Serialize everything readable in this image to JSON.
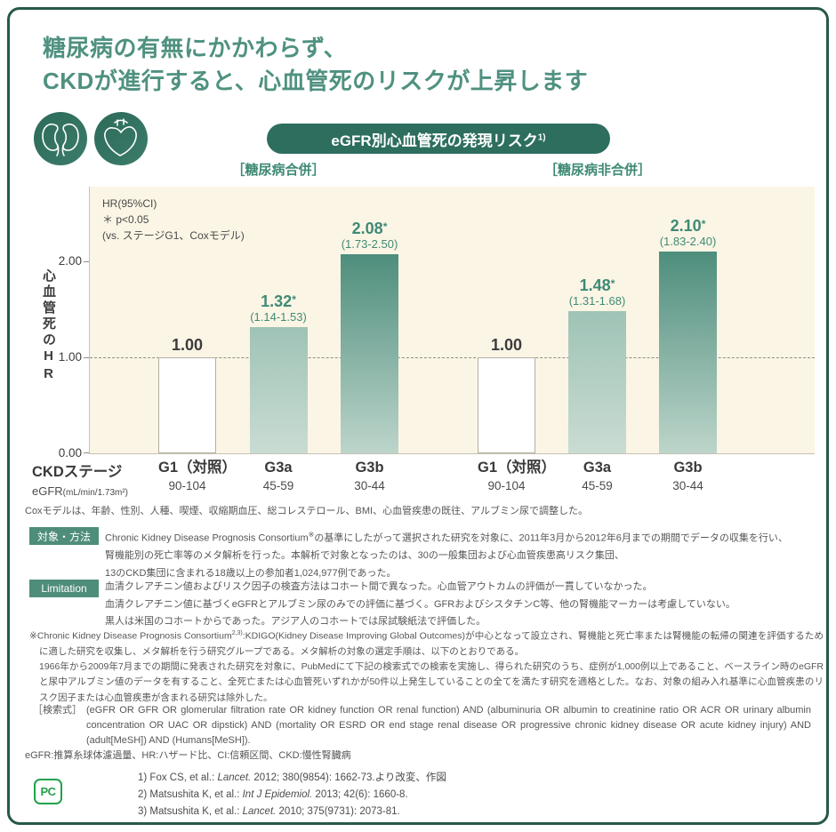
{
  "page": {
    "title_line1": "糖尿病の有無にかかわらず、",
    "title_line2": "CKDが進行すると、心血管死のリスクが上昇します",
    "frame_color": "#27594a",
    "title_color": "#4f9180"
  },
  "header": {
    "icons": [
      "kidneys-icon",
      "heart-icon"
    ],
    "badge": [
      {
        "t": "eGFR別心血管死の発現リスク"
      },
      {
        "t": "1)",
        "sup": true
      }
    ],
    "badge_bg": "#2d6e5f"
  },
  "chart_data": {
    "type": "bar",
    "title": "eGFR別心血管死の発現リスク1)",
    "notes": [
      "HR(95%CI)",
      "＊ p<0.05",
      "(vs. ステージG1、Coxモデル)"
    ],
    "ylabel": "心血管死のHR",
    "yticks": [
      "2.00",
      "1.00",
      "0.00"
    ],
    "ylim": [
      0,
      2.78
    ],
    "reference_line": 1.0,
    "grid": "dashed line at HR=1.00",
    "x_axis": {
      "stage_label": "CKDステージ",
      "egfr_label_main": "eGFR",
      "egfr_label_unit": "(mL/min/1.73m²)"
    },
    "significance_marker": "*",
    "groups": [
      {
        "label": "［糖尿病合併］",
        "bars": [
          {
            "stage": "G1（対照）",
            "egfr": "90-104",
            "value": 1.0,
            "value_label": "1.00",
            "significant": false,
            "ci_label": "",
            "style": "control"
          },
          {
            "stage": "G3a",
            "egfr": "45-59",
            "value": 1.32,
            "value_label": "1.32",
            "significant": true,
            "ci_label": "(1.14-1.53)",
            "style": "g3a"
          },
          {
            "stage": "G3b",
            "egfr": "30-44",
            "value": 2.08,
            "value_label": "2.08",
            "significant": true,
            "ci_label": "(1.73-2.50)",
            "style": "g3b"
          }
        ]
      },
      {
        "label": "［糖尿病非合併］",
        "bars": [
          {
            "stage": "G1（対照）",
            "egfr": "90-104",
            "value": 1.0,
            "value_label": "1.00",
            "significant": false,
            "ci_label": "",
            "style": "control"
          },
          {
            "stage": "G3a",
            "egfr": "45-59",
            "value": 1.48,
            "value_label": "1.48",
            "significant": true,
            "ci_label": "(1.31-1.68)",
            "style": "g3a"
          },
          {
            "stage": "G3b",
            "egfr": "30-44",
            "value": 2.1,
            "value_label": "2.10",
            "significant": true,
            "ci_label": "(1.83-2.40)",
            "style": "g3b"
          }
        ]
      }
    ],
    "colors": {
      "plot_bg": "#fbf5e5",
      "control_fill": "#ffffff",
      "control_border": "#b3afa2",
      "g3a_top": "#9fc3b6",
      "g3a_bottom": "#cadcd3",
      "g3b_top": "#4e8e7c",
      "g3b_bottom": "#bdd5cb",
      "value_text": "#3f8a75"
    }
  },
  "footnotes": {
    "cox_note": "Coxモデルは、年齢、性別、人種、喫煙、収縮期血圧、総コレステロール、BMI、心血管疾患の既往、アルブミン尿で調整した。",
    "methods": {
      "badge": "対象・方法",
      "line1": [
        {
          "t": "Chronic Kidney Disease Prognosis Consortium"
        },
        {
          "t": "※",
          "sup": true
        },
        {
          "t": "の基準にしたがって選択された研究を対象に、2011年3月から2012年6月までの期間でデータの収集を行い、"
        }
      ],
      "line2": "腎機能別の死亡率等のメタ解析を行った。本解析で対象となったのは、30の一般集団および心血管疾患高リスク集団、",
      "line3": "13のCKD集団に含まれる18歳以上の参加者1,024,977例であった。"
    },
    "limitation": {
      "badge": "Limitation",
      "lines": [
        "血清クレアチニン値およびリスク因子の検査方法はコホート間で異なった。心血管アウトカムの評価が一貫していなかった。",
        "血清クレアチニン値に基づくeGFRとアルブミン尿のみでの評価に基づく。GFRおよびシスタチンC等、他の腎機能マーカーは考慮していない。",
        "黒人は米国のコホートからであった。アジア人のコホートでは尿試験紙法で評価した。"
      ]
    },
    "consortium_note": [
      {
        "t": "※Chronic Kidney Disease Prognosis Consortium"
      },
      {
        "t": "2,3)",
        "sup": true
      },
      {
        "t": ":KDIGO(Kidney Disease Improving Global Outcomes)が中心となって設立され、腎機能と死亡率または腎機能の転帰の関連を評価するために適した研究を収集し、メタ解析を行う研究グループである。メタ解析の対象の選定手順は、以下のとおりである。"
      },
      {
        "br": true
      },
      {
        "t": "1966年から2009年7月までの期間に発表された研究を対象に、PubMedにて下記の検索式での検索を実施し、得られた研究のうち、症例が1,000例以上であること、ベースライン時のeGFRと尿中アルブミン値のデータを有すること、全死亡または心血管死いずれかが50件以上発生していることの全てを満たす研究を適格とした。なお、対象の組み入れ基準に心血管疾患のリスク因子または心血管疾患が含まれる研究は除外した。"
      }
    ],
    "search_formula": {
      "label": "［検索式］",
      "text": "(eGFR OR GFR OR glomerular filtration rate OR kidney function OR renal function) AND (albuminuria OR albumin to creatinine ratio OR ACR OR urinary albumin concentration OR UAC OR dipstick) AND (mortality OR ESRD OR end stage renal disease OR progressive chronic kidney disease OR acute kidney injury) AND (adult[MeSH]) AND (Humans[MeSH])."
    },
    "abbreviations": "eGFR:推算糸球体濾過量、HR:ハザード比、CI:信頼区間、CKD:慢性腎臓病",
    "logo_text": "PC",
    "references": [
      [
        {
          "t": "1) Fox CS, et al.: "
        },
        {
          "t": "Lancet.",
          "i": true
        },
        {
          "t": " 2012; 380(9854): 1662-73.より改変、作図"
        }
      ],
      [
        {
          "t": "2) Matsushita K, et al.: "
        },
        {
          "t": "Int J Epidemiol.",
          "i": true
        },
        {
          "t": " 2013; 42(6): 1660-8."
        }
      ],
      [
        {
          "t": "3) Matsushita K, et al.: "
        },
        {
          "t": "Lancet.",
          "i": true
        },
        {
          "t": " 2010; 375(9731): 2073-81."
        }
      ]
    ]
  }
}
